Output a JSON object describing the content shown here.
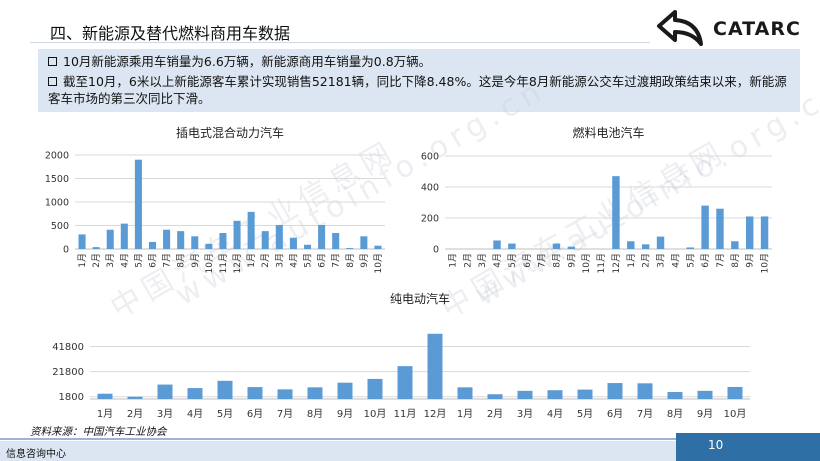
{
  "header": {
    "title": "四、新能源及替代燃料商用车数据",
    "logo_text": "CATARC"
  },
  "summary": {
    "bullet_1": "10月新能源乘用车销量为6.6万辆，新能源商用车销量为0.8万辆。",
    "bullet_2": "截至10月，6米以上新能源客车累计实现销售52181辆，同比下降8.48%。这是今年8月新能源公交车过渡期政策结束以来，新能源客车市场的第三次同比下滑。"
  },
  "colors": {
    "bar": "#5b9bd5",
    "summary_bg": "#dce6f2",
    "page_box": "#2e6fa6"
  },
  "chart_data": [
    {
      "type": "bar",
      "title": "插电式混合动力汽车",
      "categories": [
        "1月",
        "2月",
        "3月",
        "4月",
        "5月",
        "6月",
        "7月",
        "8月",
        "9月",
        "10月",
        "11月",
        "12月",
        "1月",
        "2月",
        "3月",
        "4月",
        "5月",
        "6月",
        "7月",
        "8月",
        "9月",
        "10月"
      ],
      "values": [
        310,
        40,
        410,
        540,
        1900,
        150,
        410,
        380,
        270,
        110,
        340,
        600,
        790,
        380,
        510,
        240,
        90,
        510,
        340,
        20,
        270,
        70
      ],
      "ylim": [
        0,
        2000
      ],
      "yticks": [
        0,
        500,
        1000,
        1500,
        2000
      ],
      "grid": true
    },
    {
      "type": "bar",
      "title": "燃料电池汽车",
      "categories": [
        "1月",
        "2月",
        "3月",
        "4月",
        "5月",
        "6月",
        "7月",
        "8月",
        "9月",
        "10月",
        "11月",
        "12月",
        "1月",
        "2月",
        "3月",
        "4月",
        "5月",
        "6月",
        "7月",
        "8月",
        "9月",
        "10月"
      ],
      "values": [
        0,
        0,
        0,
        55,
        35,
        0,
        0,
        35,
        15,
        0,
        0,
        470,
        50,
        30,
        80,
        0,
        10,
        280,
        260,
        50,
        210,
        210
      ],
      "ylim": [
        0,
        600
      ],
      "yticks": [
        0,
        200,
        400,
        600
      ],
      "grid": true
    },
    {
      "type": "bar",
      "title": "纯电动汽车",
      "categories": [
        "1月",
        "2月",
        "3月",
        "4月",
        "5月",
        "6月",
        "7月",
        "8月",
        "9月",
        "10月",
        "11月",
        "12月",
        "1月",
        "2月",
        "3月",
        "4月",
        "5月",
        "6月",
        "7月",
        "8月",
        "9月",
        "10月"
      ],
      "values": [
        4200,
        1800,
        11500,
        8700,
        14500,
        9500,
        7700,
        9300,
        13000,
        16000,
        26200,
        52000,
        9300,
        3800,
        6500,
        7000,
        7500,
        12700,
        12500,
        5600,
        6500,
        9600
      ],
      "ylim": [
        0,
        55000
      ],
      "yticks": [
        1800,
        21800,
        41800
      ],
      "grid": true
    }
  ],
  "source": "资料来源：中国汽车工业协会",
  "footer": {
    "left_text": "信息咨询中心",
    "page_number": "10"
  },
  "watermark": {
    "url": "www.autoinfo.org.cn",
    "text": "中国汽车工业信息网"
  }
}
